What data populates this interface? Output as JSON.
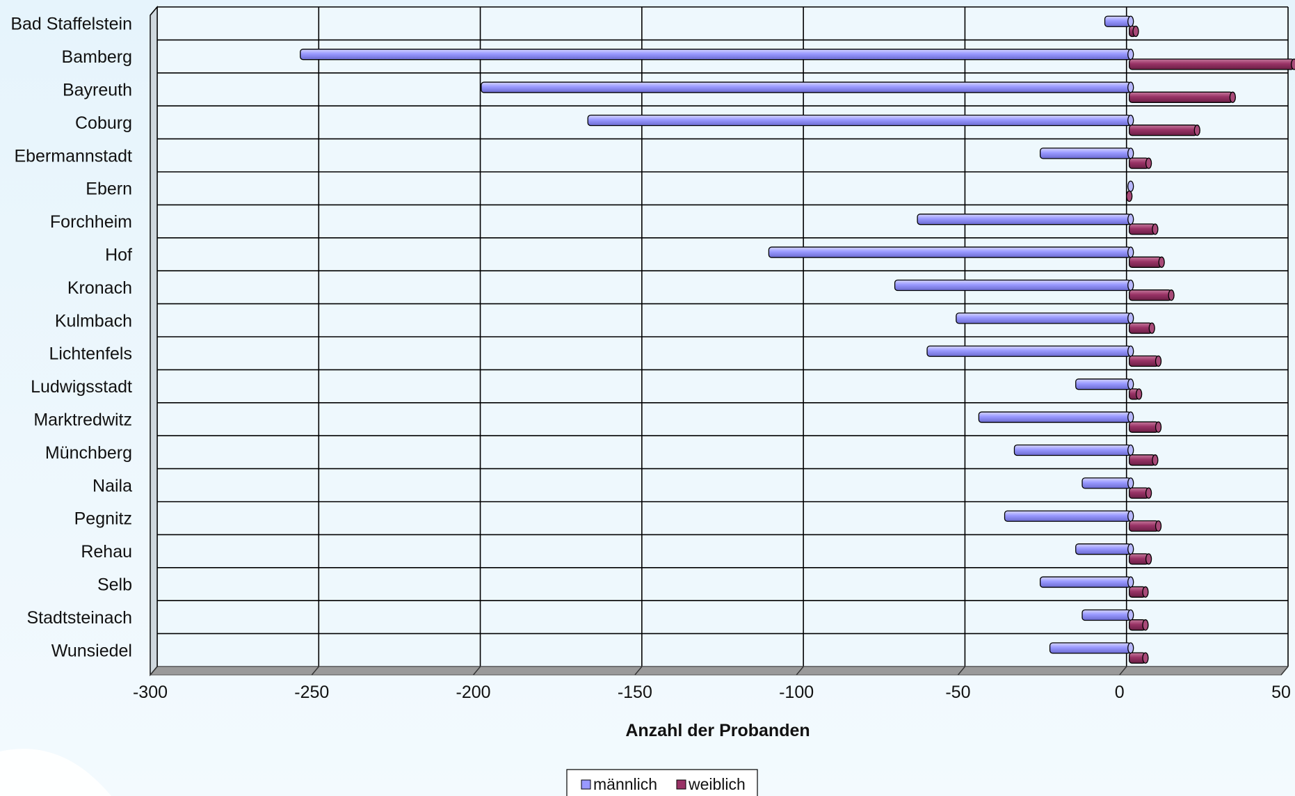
{
  "chart_data": {
    "type": "bar",
    "orientation": "horizontal",
    "title": "",
    "xlabel": "Anzahl der Probanden",
    "ylabel": "",
    "xlim": [
      -300,
      50
    ],
    "x_ticks": [
      -300,
      -250,
      -200,
      -150,
      -100,
      -50,
      0,
      50
    ],
    "grid": true,
    "legend_position": "bottom-center",
    "categories": [
      "Bad Staffelstein",
      "Bamberg",
      "Bayreuth",
      "Coburg",
      "Ebermannstadt",
      "Ebern",
      "Forchheim",
      "Hof",
      "Kronach",
      "Kulmbach",
      "Lichtenfels",
      "Ludwigsstadt",
      "Marktredwitz",
      "Münchberg",
      "Naila",
      "Pegnitz",
      "Rehau",
      "Selb",
      "Stadtsteinach",
      "Wunsiedel"
    ],
    "series": [
      {
        "name": "männlich",
        "color": "#9999ff",
        "values": [
          -8,
          -257,
          -201,
          -168,
          -28,
          0,
          -66,
          -112,
          -73,
          -54,
          -63,
          -17,
          -47,
          -36,
          -15,
          -39,
          -17,
          -28,
          -15,
          -25
        ]
      },
      {
        "name": "weiblich",
        "color": "#993366",
        "values": [
          2,
          51,
          32,
          21,
          6,
          0,
          8,
          10,
          13,
          7,
          9,
          3,
          9,
          8,
          6,
          9,
          6,
          5,
          5,
          5
        ]
      }
    ]
  }
}
